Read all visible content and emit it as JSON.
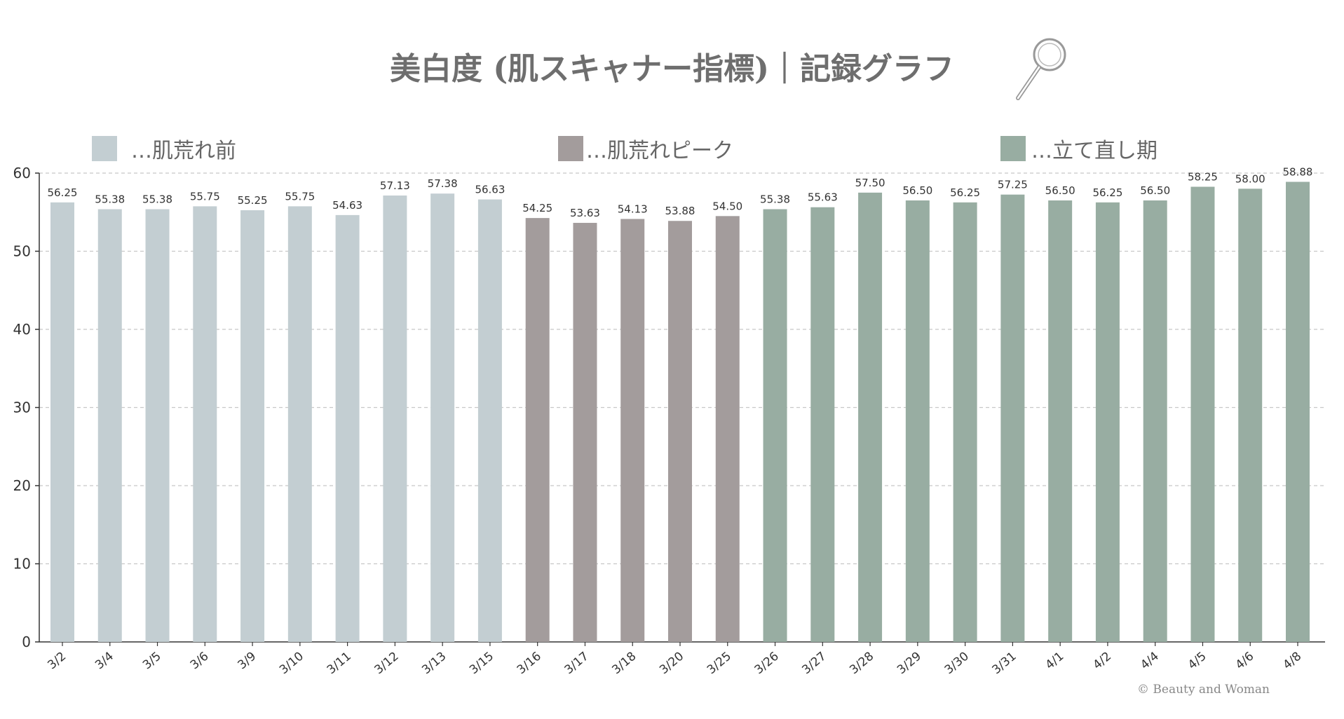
{
  "chart_data": {
    "type": "bar",
    "title": "美白度 (肌スキャナー指標)｜記録グラフ",
    "xlabel": "",
    "ylabel": "",
    "ylim": [
      0,
      60
    ],
    "yticks": [
      "0",
      "10",
      "20",
      "30",
      "40",
      "50",
      "60"
    ],
    "grid": true,
    "legend_placement": "top",
    "legend": [
      {
        "label": "…肌荒れ前",
        "color": "#c3ced2"
      },
      {
        "label": "…肌荒れピーク",
        "color": "#a39c9c"
      },
      {
        "label": "…立て直し期",
        "color": "#98ada2"
      }
    ],
    "categories": [
      "3/2",
      "3/4",
      "3/5",
      "3/6",
      "3/9",
      "3/10",
      "3/11",
      "3/12",
      "3/13",
      "3/15",
      "3/16",
      "3/17",
      "3/18",
      "3/20",
      "3/25",
      "3/26",
      "3/27",
      "3/28",
      "3/29",
      "3/30",
      "3/31",
      "4/1",
      "4/2",
      "4/4",
      "4/5",
      "4/6",
      "4/8"
    ],
    "values": [
      56.25,
      55.38,
      55.38,
      55.75,
      55.25,
      55.75,
      54.63,
      57.13,
      57.38,
      56.63,
      54.25,
      53.63,
      54.13,
      53.88,
      54.5,
      55.38,
      55.63,
      57.5,
      56.5,
      56.25,
      57.25,
      56.5,
      56.25,
      56.5,
      58.25,
      58.0,
      58.88
    ],
    "labels": [
      "56.25",
      "55.38",
      "55.38",
      "55.75",
      "55.25",
      "55.75",
      "54.63",
      "57.13",
      "57.38",
      "56.63",
      "54.25",
      "53.63",
      "54.13",
      "53.88",
      "54.50",
      "55.38",
      "55.63",
      "57.50",
      "56.50",
      "56.25",
      "57.25",
      "56.50",
      "56.25",
      "56.50",
      "58.25",
      "58.00",
      "58.88"
    ],
    "phase": [
      0,
      0,
      0,
      0,
      0,
      0,
      0,
      0,
      0,
      0,
      1,
      1,
      1,
      1,
      1,
      2,
      2,
      2,
      2,
      2,
      2,
      2,
      2,
      2,
      2,
      2,
      2
    ]
  },
  "copyright": "© Beauty and Woman"
}
